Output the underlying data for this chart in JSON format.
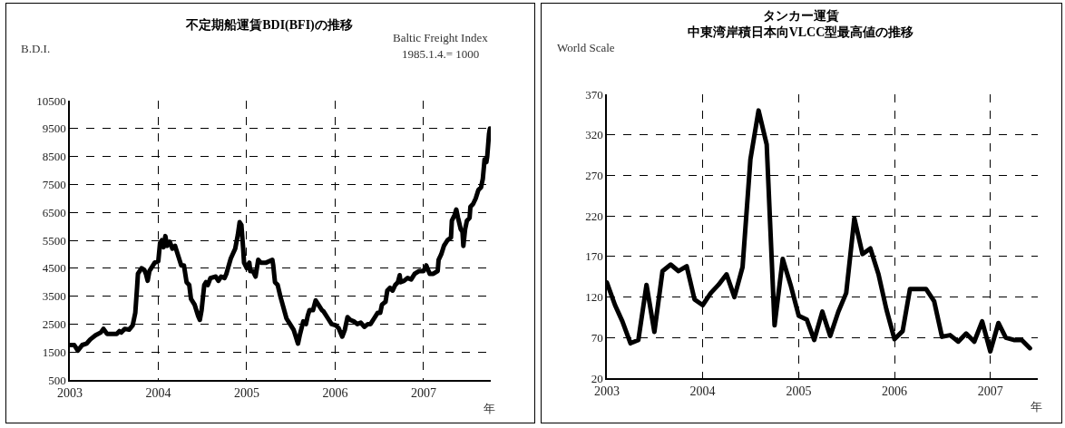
{
  "chart_data": [
    {
      "type": "line",
      "title": "不定期船運賃BDI(BFI)の推移",
      "ylabel": "B.D.I.",
      "xlabel": "年",
      "annotations": [
        "Baltic Freight Index",
        "1985.1.4.= 1000"
      ],
      "x": [
        2003,
        2003.05,
        2003.09,
        2003.14,
        2003.19,
        2003.23,
        2003.29,
        2003.35,
        2003.38,
        2003.42,
        2003.48,
        2003.53,
        2003.56,
        2003.58,
        2003.62,
        2003.67,
        2003.71,
        2003.74,
        2003.76,
        2003.77,
        2003.81,
        2003.84,
        2003.86,
        2003.88,
        2003.9,
        2003.96,
        2004,
        2004.02,
        2004.04,
        2004.06,
        2004.08,
        2004.1,
        2004.13,
        2004.16,
        2004.19,
        2004.23,
        2004.26,
        2004.29,
        2004.32,
        2004.35,
        2004.37,
        2004.41,
        2004.45,
        2004.47,
        2004.49,
        2004.52,
        2004.54,
        2004.56,
        2004.59,
        2004.65,
        2004.68,
        2004.71,
        2004.75,
        2004.77,
        2004.82,
        2004.87,
        2004.9,
        2004.92,
        2004.94,
        2004.96,
        2004.97,
        2005,
        2005.03,
        2005.04,
        2005.07,
        2005.1,
        2005.13,
        2005.16,
        2005.22,
        2005.29,
        2005.3,
        2005.32,
        2005.35,
        2005.38,
        2005.45,
        2005.48,
        2005.53,
        2005.56,
        2005.58,
        2005.6,
        2005.64,
        2005.67,
        2005.69,
        2005.71,
        2005.75,
        2005.78,
        2005.81,
        2005.85,
        2005.87,
        2005.92,
        2005.96,
        2006.01,
        2006.04,
        2006.08,
        2006.11,
        2006.14,
        2006.17,
        2006.21,
        2006.25,
        2006.29,
        2006.33,
        2006.37,
        2006.4,
        2006.44,
        2006.48,
        2006.51,
        2006.53,
        2006.57,
        2006.59,
        2006.62,
        2006.65,
        2006.68,
        2006.71,
        2006.73,
        2006.74,
        2006.78,
        2006.82,
        2006.86,
        2006.9,
        2006.95,
        2007,
        2007.03,
        2007.07,
        2007.11,
        2007.16,
        2007.17,
        2007.2,
        2007.23,
        2007.27,
        2007.31,
        2007.32,
        2007.35,
        2007.37,
        2007.39,
        2007.42,
        2007.44,
        2007.45,
        2007.47,
        2007.49,
        2007.52,
        2007.53,
        2007.56,
        2007.59,
        2007.62,
        2007.65,
        2007.67,
        2007.69,
        2007.71,
        2007.72,
        2007.74,
        2007.75
      ],
      "series": [
        {
          "color": "#000000",
          "values": [
            1750,
            1750,
            1550,
            1750,
            1800,
            1950,
            2100,
            2200,
            2330,
            2150,
            2150,
            2150,
            2250,
            2200,
            2330,
            2300,
            2450,
            2900,
            3800,
            4300,
            4500,
            4450,
            4300,
            4050,
            4400,
            4700,
            4750,
            5400,
            5500,
            5250,
            5650,
            5300,
            5450,
            5200,
            5300,
            4900,
            4600,
            4600,
            4000,
            3900,
            3400,
            3200,
            2800,
            2650,
            3000,
            3900,
            4000,
            3900,
            4150,
            4200,
            4050,
            4200,
            4150,
            4300,
            4850,
            5200,
            5700,
            6150,
            6050,
            5200,
            4700,
            4500,
            4700,
            4400,
            4400,
            4200,
            4800,
            4700,
            4700,
            4800,
            4600,
            4000,
            3900,
            3500,
            2700,
            2550,
            2300,
            2000,
            1800,
            2100,
            2600,
            2500,
            2800,
            3000,
            3000,
            3350,
            3200,
            3000,
            2950,
            2700,
            2500,
            2450,
            2350,
            2050,
            2300,
            2750,
            2650,
            2600,
            2500,
            2550,
            2400,
            2500,
            2500,
            2700,
            2900,
            2900,
            3200,
            3300,
            3700,
            3800,
            3700,
            3900,
            4000,
            4250,
            4000,
            4050,
            4150,
            4100,
            4300,
            4400,
            4400,
            4600,
            4300,
            4300,
            4400,
            4800,
            5000,
            5300,
            5500,
            5600,
            6200,
            6400,
            6600,
            6300,
            5900,
            5800,
            5300,
            5900,
            6200,
            6300,
            6700,
            6800,
            7000,
            7300,
            7400,
            7700,
            8400,
            8300,
            8500,
            9300,
            9500
          ]
        }
      ],
      "xlim": [
        2003,
        2007.76
      ],
      "xticks": [
        2003,
        2004,
        2005,
        2006,
        2007
      ],
      "ylim": [
        500,
        10500
      ],
      "yticks": [
        500,
        1500,
        2500,
        3500,
        4500,
        5500,
        6500,
        7500,
        8500,
        9500,
        10500
      ],
      "grid": true
    },
    {
      "type": "line",
      "title": "タンカー運賃",
      "subtitle": "中東湾岸積日本向VLCC型最高値の推移",
      "ylabel": "World Scale",
      "xlabel": "年",
      "x": [
        "2003-01",
        "2003-02",
        "2003-03",
        "2003-04",
        "2003-05",
        "2003-06",
        "2003-07",
        "2003-08",
        "2003-09",
        "2003-10",
        "2003-11",
        "2003-12",
        "2004-01",
        "2004-02",
        "2004-03",
        "2004-04",
        "2004-05",
        "2004-06",
        "2004-07",
        "2004-08",
        "2004-09",
        "2004-10",
        "2004-11",
        "2004-12",
        "2005-01",
        "2005-02",
        "2005-03",
        "2005-04",
        "2005-05",
        "2005-06",
        "2005-07",
        "2005-08",
        "2005-09",
        "2005-10",
        "2005-11",
        "2005-12",
        "2006-01",
        "2006-02",
        "2006-03",
        "2006-04",
        "2006-05",
        "2006-06",
        "2006-07",
        "2006-08",
        "2006-09",
        "2006-10",
        "2006-11",
        "2006-12",
        "2007-01",
        "2007-02",
        "2007-03",
        "2007-04",
        "2007-05",
        "2007-06"
      ],
      "series": [
        {
          "color": "#000000",
          "values": [
            138,
            110,
            90,
            63,
            67,
            135,
            77,
            152,
            160,
            152,
            158,
            117,
            110,
            125,
            135,
            148,
            120,
            157,
            290,
            350,
            308,
            85,
            167,
            135,
            97,
            92,
            67,
            102,
            72,
            102,
            125,
            217,
            173,
            180,
            148,
            105,
            68,
            78,
            130,
            130,
            130,
            115,
            71,
            73,
            65,
            75,
            65,
            90,
            53,
            88,
            70,
            67,
            67,
            57
          ]
        }
      ],
      "xlim": [
        "2003-01-01",
        "2007-07-01"
      ],
      "xticks": [
        {
          "value": "2003-01-01",
          "label": "2003"
        },
        {
          "value": "2004-01-01",
          "label": "2004"
        },
        {
          "value": "2005-01-01",
          "label": "2005"
        },
        {
          "value": "2006-01-01",
          "label": "2006"
        },
        {
          "value": "2007-01-01",
          "label": "2007"
        }
      ],
      "ylim": [
        20,
        370
      ],
      "yticks": [
        20,
        70,
        120,
        170,
        220,
        270,
        320,
        370
      ],
      "grid": true
    }
  ]
}
